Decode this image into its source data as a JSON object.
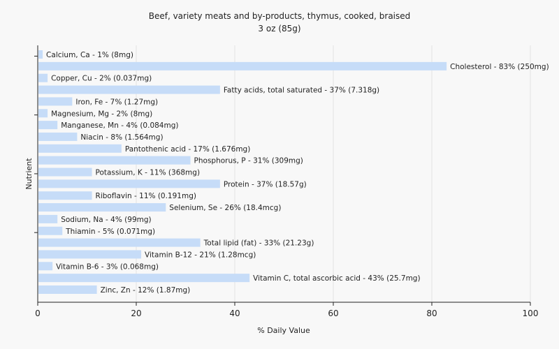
{
  "chart_data": {
    "type": "bar",
    "orientation": "horizontal",
    "title": "Beef, variety meats and by-products, thymus, cooked, braised",
    "subtitle": "3 oz (85g)",
    "xlabel": "% Daily Value",
    "ylabel": "Nutrient",
    "xlim": [
      0,
      100
    ],
    "xticks": [
      "0",
      "20",
      "40",
      "60",
      "80",
      "100"
    ],
    "grid": true,
    "bar_color": "#c6dcf8",
    "categories": [
      "Calcium, Ca",
      "Cholesterol",
      "Copper, Cu",
      "Fatty acids, total saturated",
      "Iron, Fe",
      "Magnesium, Mg",
      "Manganese, Mn",
      "Niacin",
      "Pantothenic acid",
      "Phosphorus, P",
      "Potassium, K",
      "Protein",
      "Riboflavin",
      "Selenium, Se",
      "Sodium, Na",
      "Thiamin",
      "Total lipid (fat)",
      "Vitamin B-12",
      "Vitamin B-6",
      "Vitamin C, total ascorbic acid",
      "Zinc, Zn"
    ],
    "values": [
      1,
      83,
      2,
      37,
      7,
      2,
      4,
      8,
      17,
      31,
      11,
      37,
      11,
      26,
      4,
      5,
      33,
      21,
      3,
      43,
      12
    ],
    "labels": [
      "Calcium, Ca - 1% (8mg)",
      "Cholesterol - 83% (250mg)",
      "Copper, Cu - 2% (0.037mg)",
      "Fatty acids, total saturated - 37% (7.318g)",
      "Iron, Fe - 7% (1.27mg)",
      "Magnesium, Mg - 2% (8mg)",
      "Manganese, Mn - 4% (0.084mg)",
      "Niacin - 8% (1.564mg)",
      "Pantothenic acid - 17% (1.676mg)",
      "Phosphorus, P - 31% (309mg)",
      "Potassium, K - 11% (368mg)",
      "Protein - 37% (18.57g)",
      "Riboflavin - 11% (0.191mg)",
      "Selenium, Se - 26% (18.4mcg)",
      "Sodium, Na - 4% (99mg)",
      "Thiamin - 5% (0.071mg)",
      "Total lipid (fat) - 33% (21.23g)",
      "Vitamin B-12 - 21% (1.28mcg)",
      "Vitamin B-6 - 3% (0.068mg)",
      "Vitamin C, total ascorbic acid - 43% (25.7mg)",
      "Zinc, Zn - 12% (1.87mg)"
    ]
  }
}
